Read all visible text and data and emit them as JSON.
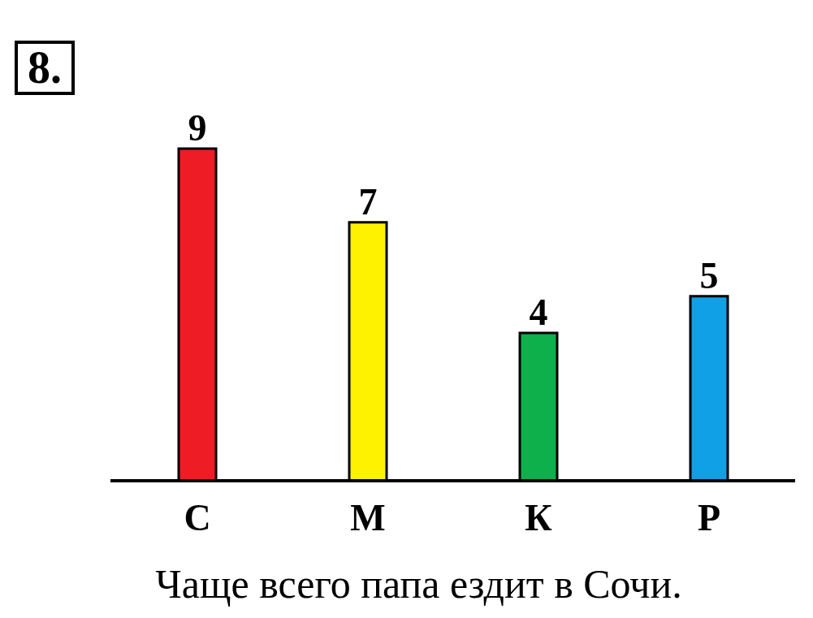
{
  "chart_data": {
    "type": "bar",
    "title": "8.",
    "categories": [
      "С",
      "М",
      "К",
      "Р"
    ],
    "values": [
      9,
      7,
      4,
      5
    ],
    "colors": [
      "#ee1c24",
      "#fff200",
      "#0db04b",
      "#10a0e6"
    ],
    "data_labels": true,
    "annotations": [
      "Чаще всего папа ездит в Сочи."
    ]
  }
}
